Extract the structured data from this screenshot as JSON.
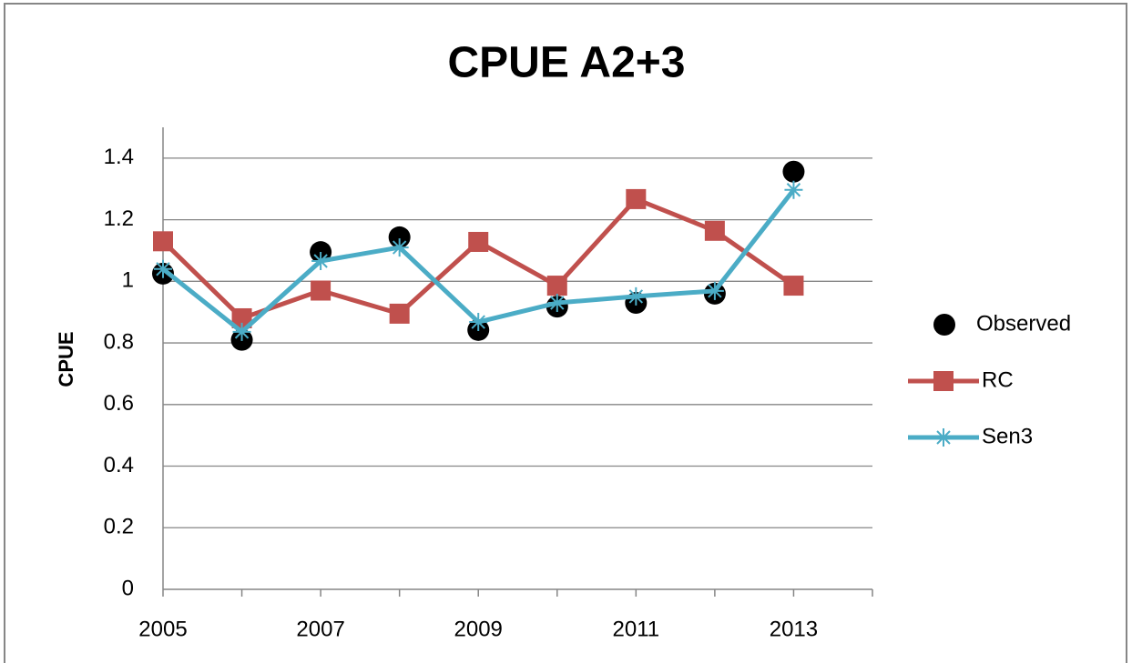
{
  "chart_data": {
    "type": "line",
    "title": "CPUE A2+3",
    "y_label": "CPUE",
    "x": [
      2005,
      2006,
      2007,
      2008,
      2009,
      2010,
      2011,
      2012,
      2013
    ],
    "xlim": [
      2005,
      2014
    ],
    "xticks": [
      2005,
      2007,
      2009,
      2011,
      2013
    ],
    "ylim": [
      0,
      1.5
    ],
    "yticks": [
      0,
      0.2,
      0.4,
      0.6,
      0.8,
      1,
      1.2,
      1.4
    ],
    "grid": true,
    "legend": "right",
    "series": [
      {
        "name": "Observed",
        "color": "#000000",
        "marker": "circle",
        "line": false,
        "values": [
          1.025,
          0.81,
          1.095,
          1.143,
          0.842,
          0.918,
          0.93,
          0.96,
          1.356
        ]
      },
      {
        "name": "RC",
        "color": "#c0504d",
        "marker": "square",
        "line": true,
        "values": [
          1.13,
          0.88,
          0.97,
          0.895,
          1.128,
          0.986,
          1.267,
          1.164,
          0.986
        ]
      },
      {
        "name": "Sen3",
        "color": "#4bacc6",
        "marker": "star",
        "line": true,
        "values": [
          1.04,
          0.836,
          1.066,
          1.11,
          0.868,
          0.93,
          0.951,
          0.969,
          1.297
        ]
      }
    ]
  }
}
